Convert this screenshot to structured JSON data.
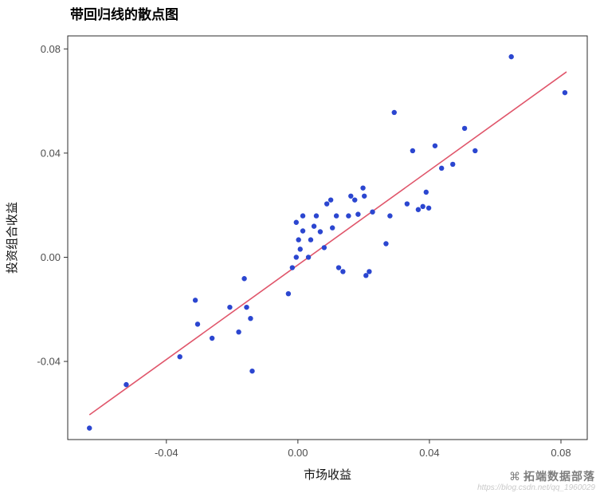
{
  "title": "带回归线的散点图",
  "watermark": {
    "brand": "拓端数据部落",
    "logo_icon": "⌘",
    "url": "https://blog.csdn.net/qq_1960029"
  },
  "chart_data": {
    "type": "scatter",
    "title": "带回归线的散点图",
    "xlabel": "市场收益",
    "ylabel": "投资组合收益",
    "xlim": [
      -0.07,
      0.088
    ],
    "ylim": [
      -0.07,
      0.085
    ],
    "xticks": [
      -0.04,
      0.0,
      0.04,
      0.08
    ],
    "yticks": [
      -0.04,
      0.0,
      0.04,
      0.08
    ],
    "grid": false,
    "legend": "none",
    "point_color": "#2b46d0",
    "line_color": "#e0566b",
    "regression_line": {
      "x1": -0.0634,
      "y1": -0.0605,
      "x2": 0.0817,
      "y2": 0.0712
    },
    "points": [
      [
        -0.0634,
        -0.0656
      ],
      [
        -0.0522,
        -0.0489
      ],
      [
        -0.0359,
        -0.0382
      ],
      [
        -0.0312,
        -0.0165
      ],
      [
        -0.0305,
        -0.0257
      ],
      [
        -0.0261,
        -0.0311
      ],
      [
        -0.0207,
        -0.0192
      ],
      [
        -0.018,
        -0.0287
      ],
      [
        -0.0156,
        -0.0192
      ],
      [
        -0.0163,
        -0.0082
      ],
      [
        -0.0144,
        -0.0235
      ],
      [
        -0.0139,
        -0.0437
      ],
      [
        -0.0029,
        -0.014
      ],
      [
        -0.0017,
        -0.004
      ],
      [
        -0.0005,
        0.0
      ],
      [
        -0.0005,
        0.0134
      ],
      [
        0.0002,
        0.0067
      ],
      [
        0.0007,
        0.0031
      ],
      [
        0.0015,
        0.0101
      ],
      [
        0.0015,
        0.0159
      ],
      [
        0.0032,
        0.0
      ],
      [
        0.0039,
        0.0067
      ],
      [
        0.0049,
        0.0119
      ],
      [
        0.0056,
        0.0159
      ],
      [
        0.0068,
        0.0098
      ],
      [
        0.008,
        0.0037
      ],
      [
        0.0088,
        0.0205
      ],
      [
        0.01,
        0.022
      ],
      [
        0.0105,
        0.0113
      ],
      [
        0.0117,
        0.0159
      ],
      [
        0.0124,
        -0.004
      ],
      [
        0.0137,
        -0.0055
      ],
      [
        0.0154,
        0.0159
      ],
      [
        0.0161,
        0.0235
      ],
      [
        0.0173,
        0.022
      ],
      [
        0.0183,
        0.0165
      ],
      [
        0.0198,
        0.0266
      ],
      [
        0.0202,
        0.0235
      ],
      [
        0.0207,
        -0.007
      ],
      [
        0.0217,
        -0.0055
      ],
      [
        0.0227,
        0.0174
      ],
      [
        0.0268,
        0.0052
      ],
      [
        0.028,
        0.0159
      ],
      [
        0.0293,
        0.0556
      ],
      [
        0.0332,
        0.0205
      ],
      [
        0.0349,
        0.0409
      ],
      [
        0.0366,
        0.0183
      ],
      [
        0.038,
        0.0195
      ],
      [
        0.039,
        0.025
      ],
      [
        0.0398,
        0.0189
      ],
      [
        0.0417,
        0.0428
      ],
      [
        0.0437,
        0.0342
      ],
      [
        0.0471,
        0.0357
      ],
      [
        0.0507,
        0.0495
      ],
      [
        0.0539,
        0.0409
      ],
      [
        0.0649,
        0.077
      ],
      [
        0.0812,
        0.0632
      ]
    ]
  }
}
